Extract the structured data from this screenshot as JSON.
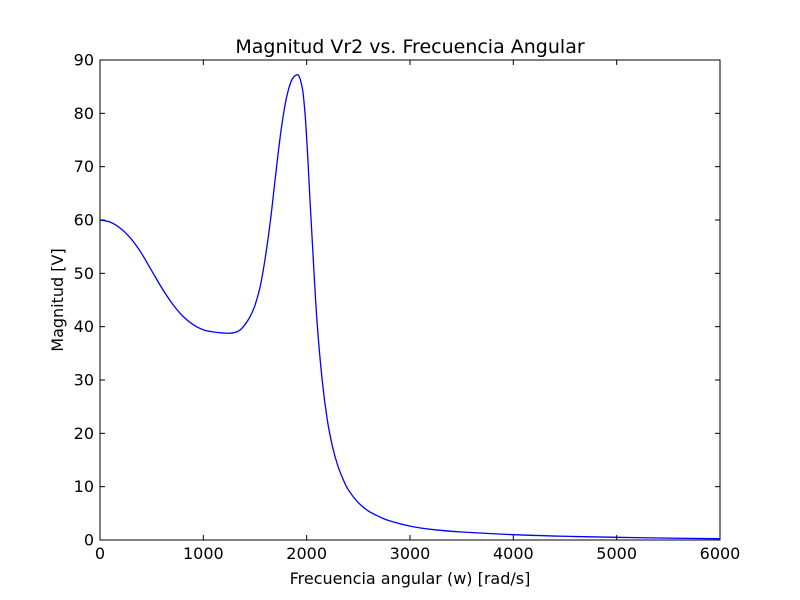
{
  "chart_data": {
    "type": "line",
    "title": "Magnitud Vr2 vs. Frecuencia Angular",
    "xlabel": "Frecuencia angular (w) [rad/s]",
    "ylabel": "Magnitud [V]",
    "xlim": [
      0,
      6000
    ],
    "ylim": [
      0,
      90
    ],
    "x_ticks": [
      0,
      1000,
      2000,
      3000,
      4000,
      5000,
      6000
    ],
    "y_ticks": [
      0,
      10,
      20,
      30,
      40,
      50,
      60,
      70,
      80,
      90
    ],
    "grid": false,
    "legend": "none",
    "series": [
      {
        "color": "#0000ff",
        "x": [
          0,
          100,
          200,
          300,
          400,
          500,
          600,
          700,
          800,
          900,
          1000,
          1100,
          1200,
          1280,
          1350,
          1400,
          1450,
          1500,
          1550,
          1600,
          1650,
          1700,
          1750,
          1800,
          1850,
          1900,
          1930,
          1960,
          1975,
          1990,
          2010,
          2030,
          2060,
          2100,
          2150,
          2200,
          2250,
          2300,
          2350,
          2400,
          2500,
          2600,
          2700,
          2800,
          3000,
          3200,
          3500,
          4000,
          4500,
          5000,
          5500,
          6000
        ],
        "y": [
          60,
          59.6,
          58.4,
          56.5,
          53.8,
          50.5,
          47.2,
          44.3,
          42.0,
          40.4,
          39.4,
          39.0,
          38.8,
          38.8,
          39.3,
          40.3,
          41.8,
          44.0,
          47.5,
          53.0,
          60.0,
          68.5,
          76.5,
          82.5,
          86.0,
          87.2,
          86.8,
          84.5,
          82.0,
          78.5,
          72.0,
          64.5,
          54.0,
          41.0,
          30.0,
          22.5,
          17.5,
          14.0,
          11.5,
          9.5,
          7.0,
          5.4,
          4.4,
          3.6,
          2.6,
          2.0,
          1.5,
          1.0,
          0.7,
          0.5,
          0.35,
          0.25
        ]
      }
    ]
  }
}
